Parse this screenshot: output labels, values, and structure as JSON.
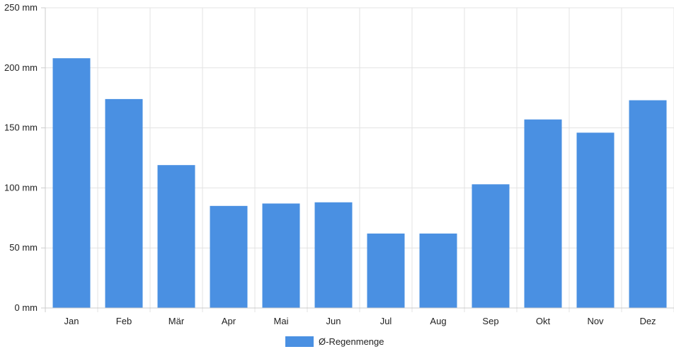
{
  "chart_data": {
    "type": "bar",
    "categories": [
      "Jan",
      "Feb",
      "Mär",
      "Apr",
      "Mai",
      "Jun",
      "Jul",
      "Aug",
      "Sep",
      "Okt",
      "Nov",
      "Dez"
    ],
    "series": [
      {
        "name": "Ø-Regenmenge",
        "color": "#4a90e2",
        "values": [
          208,
          174,
          119,
          85,
          87,
          88,
          62,
          62,
          103,
          157,
          146,
          173
        ]
      }
    ],
    "title": "",
    "xlabel": "",
    "ylabel": "",
    "ylim": [
      0,
      250
    ],
    "yticks": [
      0,
      50,
      100,
      150,
      200,
      250
    ],
    "yunit": "mm",
    "grid": true,
    "legend_position": "bottom-center"
  }
}
